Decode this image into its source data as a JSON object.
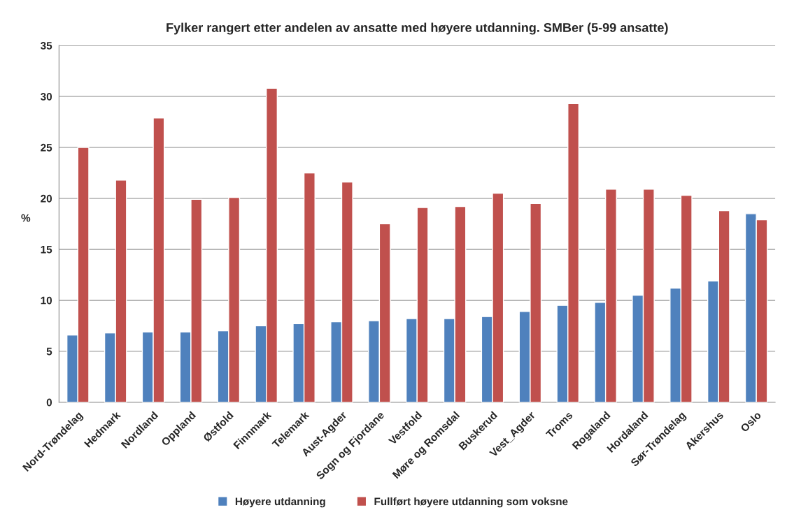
{
  "chart_data": {
    "type": "bar",
    "title": "Fylker rangert etter andelen av ansatte med høyere utdanning. SMBer (5-99 ansatte)",
    "ylabel": "%",
    "categories": [
      "Nord-Trøndelag",
      "Hedmark",
      "Nordland",
      "Oppland",
      "Østfold",
      "Finnmark",
      "Telemark",
      "Aust-Agder",
      "Sogn og Fjordane",
      "Vestfold",
      "Møre og Romsdal",
      "Buskerud",
      "Vest_Agder",
      "Troms",
      "Rogaland",
      "Hordaland",
      "Sør-Trøndelag",
      "Akershus",
      "Oslo"
    ],
    "series": [
      {
        "name": "Høyere utdanning",
        "color": "#4f81bd",
        "values": [
          6.6,
          6.8,
          6.9,
          6.9,
          7.0,
          7.5,
          7.7,
          7.9,
          8.0,
          8.2,
          8.2,
          8.4,
          8.9,
          9.5,
          9.8,
          10.5,
          11.2,
          11.9,
          18.5
        ]
      },
      {
        "name": "Fullført høyere utdanning som voksne",
        "color": "#c0504d",
        "values": [
          25.0,
          21.8,
          27.9,
          19.9,
          20.1,
          30.8,
          22.5,
          21.6,
          17.5,
          19.1,
          19.2,
          20.5,
          19.5,
          29.3,
          20.9,
          20.9,
          20.3,
          18.8,
          17.9
        ]
      }
    ],
    "ylim": [
      0,
      35
    ],
    "yticks": [
      0,
      5,
      10,
      15,
      20,
      25,
      30,
      35
    ],
    "grid": "y",
    "legend": "bottom"
  }
}
